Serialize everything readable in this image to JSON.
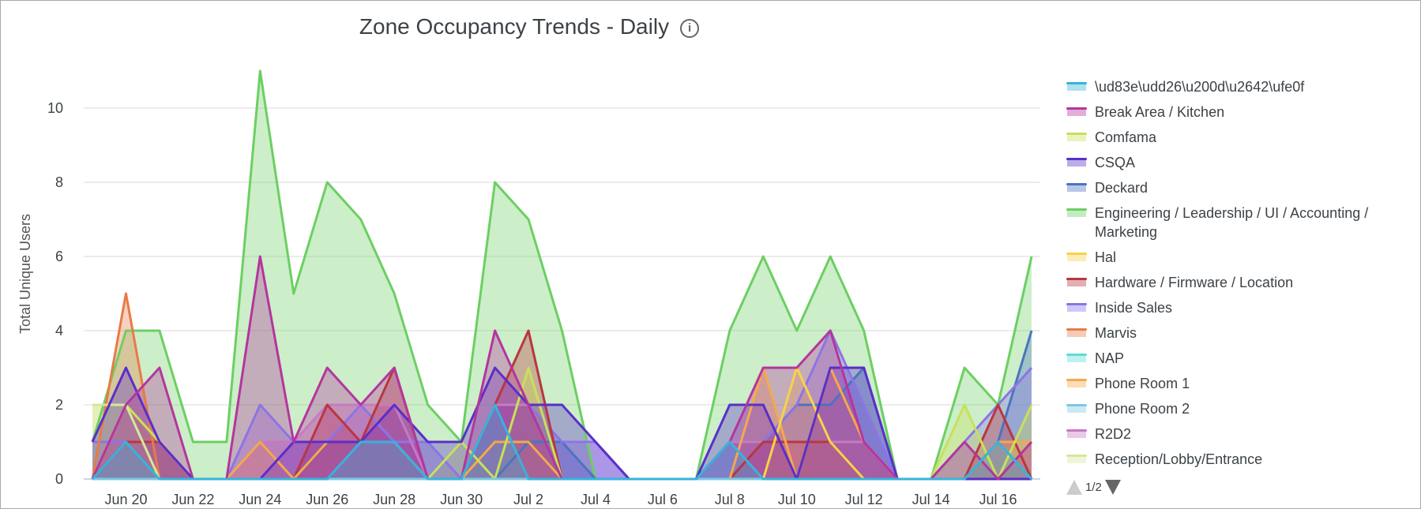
{
  "chart_data": {
    "type": "area",
    "title": "Zone Occupancy Trends - Daily",
    "xlabel": "",
    "ylabel": "Total Unique Users",
    "ylim": [
      0,
      11.5
    ],
    "yticks": [
      0,
      2,
      4,
      6,
      8,
      10
    ],
    "grid": true,
    "legend_position": "right",
    "x": [
      "Jun 19",
      "Jun 20",
      "Jun 21",
      "Jun 22",
      "Jun 23",
      "Jun 24",
      "Jun 25",
      "Jun 26",
      "Jun 27",
      "Jun 28",
      "Jun 29",
      "Jun 30",
      "Jul 1",
      "Jul 2",
      "Jul 3",
      "Jul 4",
      "Jul 5",
      "Jul 6",
      "Jul 7",
      "Jul 8",
      "Jul 9",
      "Jul 10",
      "Jul 11",
      "Jul 12",
      "Jul 13",
      "Jul 14",
      "Jul 15",
      "Jul 16",
      "Jul 17"
    ],
    "xtick_labels": [
      "Jun 20",
      "Jun 22",
      "Jun 24",
      "Jun 26",
      "Jun 28",
      "Jun 30",
      "Jul 2",
      "Jul 4",
      "Jul 6",
      "Jul 8",
      "Jul 10",
      "Jul 12",
      "Jul 14",
      "Jul 16"
    ],
    "series": [
      {
        "name": "Engineering / Leadership / UI / Accounting / Marketing",
        "color": "#6ccf63",
        "values": [
          1,
          4,
          4,
          1,
          1,
          11,
          5,
          8,
          7,
          5,
          2,
          1,
          8,
          7,
          4,
          0,
          0,
          0,
          0,
          4,
          6,
          4,
          6,
          4,
          0,
          0,
          3,
          2,
          6
        ]
      },
      {
        "name": "Deckard",
        "color": "#4a74c0",
        "values": [
          0,
          1,
          1,
          0,
          0,
          0,
          0,
          1,
          1,
          1,
          0,
          0,
          0,
          1,
          1,
          0,
          0,
          0,
          0,
          0,
          1,
          2,
          2,
          3,
          0,
          0,
          0,
          1,
          4
        ]
      },
      {
        "name": "Inside Sales",
        "color": "#8c74e8",
        "values": [
          1,
          1,
          1,
          0,
          0,
          2,
          1,
          1,
          2,
          1,
          1,
          0,
          2,
          2,
          1,
          1,
          0,
          0,
          0,
          1,
          1,
          2,
          4,
          2,
          0,
          0,
          1,
          2,
          3
        ]
      },
      {
        "name": "R2D2",
        "color": "#c879c4",
        "values": [
          0,
          1,
          1,
          0,
          0,
          1,
          1,
          2,
          2,
          2,
          0,
          0,
          2,
          2,
          0,
          0,
          0,
          0,
          0,
          1,
          1,
          1,
          1,
          1,
          0,
          0,
          0,
          1,
          1
        ]
      },
      {
        "name": "Hardware / Firmware / Location",
        "color": "#b9373f",
        "values": [
          0,
          1,
          1,
          0,
          0,
          0,
          0,
          2,
          1,
          3,
          0,
          0,
          2,
          4,
          0,
          0,
          0,
          0,
          0,
          0,
          1,
          1,
          1,
          0,
          0,
          0,
          0,
          2,
          0
        ]
      },
      {
        "name": "Marvis",
        "color": "#e87a48",
        "values": [
          0,
          5,
          0,
          0,
          0,
          0,
          0,
          0,
          0,
          0,
          0,
          0,
          0,
          0,
          0,
          0,
          0,
          0,
          0,
          0,
          0,
          0,
          0,
          0,
          0,
          0,
          0,
          0,
          0
        ]
      },
      {
        "name": "Phone Room 1",
        "color": "#f5a84a",
        "values": [
          0,
          2,
          1,
          0,
          0,
          1,
          0,
          1,
          1,
          1,
          0,
          0,
          1,
          1,
          0,
          0,
          0,
          0,
          0,
          0,
          3,
          0,
          3,
          1,
          0,
          0,
          0,
          1,
          1
        ]
      },
      {
        "name": "Hal",
        "color": "#f7d34a",
        "values": [
          0,
          0,
          0,
          0,
          0,
          0,
          0,
          0,
          0,
          0,
          0,
          0,
          0,
          0,
          0,
          0,
          0,
          0,
          0,
          0,
          0,
          3,
          1,
          0,
          0,
          0,
          0,
          0,
          0
        ]
      },
      {
        "name": "Comfama",
        "color": "#c8e05a",
        "values": [
          2,
          2,
          1,
          0,
          0,
          0,
          0,
          0,
          0,
          0,
          0,
          1,
          0,
          3,
          0,
          0,
          0,
          0,
          0,
          0,
          0,
          0,
          0,
          0,
          0,
          0,
          2,
          0,
          2
        ]
      },
      {
        "name": "Reception/Lobby/Entrance",
        "color": "#d4e89a",
        "values": [
          2,
          2,
          0,
          0,
          0,
          0,
          0,
          0,
          0,
          0,
          0,
          0,
          0,
          0,
          0,
          0,
          0,
          0,
          0,
          0,
          0,
          0,
          0,
          0,
          0,
          0,
          0,
          0,
          0
        ]
      },
      {
        "name": "NAP",
        "color": "#5ddcd8",
        "values": [
          0,
          0,
          0,
          0,
          0,
          0,
          0,
          0,
          0,
          0,
          0,
          0,
          0,
          0,
          0,
          0,
          0,
          0,
          0,
          0,
          0,
          0,
          0,
          0,
          0,
          0,
          0,
          0,
          0
        ]
      },
      {
        "name": "Phone Room 2",
        "color": "#7cc8e4",
        "values": [
          0,
          0,
          0,
          0,
          0,
          0,
          0,
          0,
          0,
          0,
          0,
          0,
          0,
          0,
          0,
          0,
          0,
          0,
          0,
          0,
          0,
          0,
          0,
          0,
          0,
          0,
          0,
          0,
          0
        ]
      },
      {
        "name": "CSQA",
        "color": "#5a2fc8",
        "values": [
          1,
          3,
          1,
          0,
          0,
          0,
          1,
          1,
          1,
          2,
          1,
          1,
          3,
          2,
          2,
          1,
          0,
          0,
          0,
          2,
          2,
          0,
          3,
          3,
          0,
          0,
          0,
          0,
          0
        ]
      },
      {
        "name": "Break Area / Kitchen",
        "color": "#b5359e",
        "values": [
          0,
          2,
          3,
          0,
          0,
          6,
          1,
          3,
          2,
          3,
          0,
          0,
          4,
          2,
          0,
          0,
          0,
          0,
          0,
          1,
          3,
          3,
          4,
          1,
          0,
          0,
          1,
          0,
          1
        ]
      },
      {
        "name": "\\ud83e\\udd26\\u200d\\u2642\\ufe0f",
        "color": "#35b4dc",
        "values": [
          0,
          1,
          0,
          0,
          0,
          0,
          0,
          0,
          1,
          1,
          0,
          0,
          2,
          0,
          0,
          0,
          0,
          0,
          0,
          1,
          0,
          0,
          0,
          0,
          0,
          0,
          0,
          1,
          0
        ]
      }
    ]
  },
  "legend": {
    "items": [
      {
        "label": "\\ud83e\\udd26\\u200d\\u2642\\ufe0f",
        "color": "#35b4dc"
      },
      {
        "label": "Break Area / Kitchen",
        "color": "#b5359e"
      },
      {
        "label": "Comfama",
        "color": "#c8e05a"
      },
      {
        "label": "CSQA",
        "color": "#5a2fc8"
      },
      {
        "label": "Deckard",
        "color": "#4a74c0"
      },
      {
        "label": "Engineering / Leadership / UI / Accounting / Marketing",
        "color": "#6ccf63"
      },
      {
        "label": "Hal",
        "color": "#f7d34a"
      },
      {
        "label": "Hardware / Firmware / Location",
        "color": "#b9373f"
      },
      {
        "label": "Inside Sales",
        "color": "#8c74e8"
      },
      {
        "label": "Marvis",
        "color": "#e87a48"
      },
      {
        "label": "NAP",
        "color": "#5ddcd8"
      },
      {
        "label": "Phone Room 1",
        "color": "#f5a84a"
      },
      {
        "label": "Phone Room 2",
        "color": "#7cc8e4"
      },
      {
        "label": "R2D2",
        "color": "#c879c4"
      },
      {
        "label": "Reception/Lobby/Entrance",
        "color": "#d4e89a"
      }
    ],
    "page": "1/2"
  }
}
